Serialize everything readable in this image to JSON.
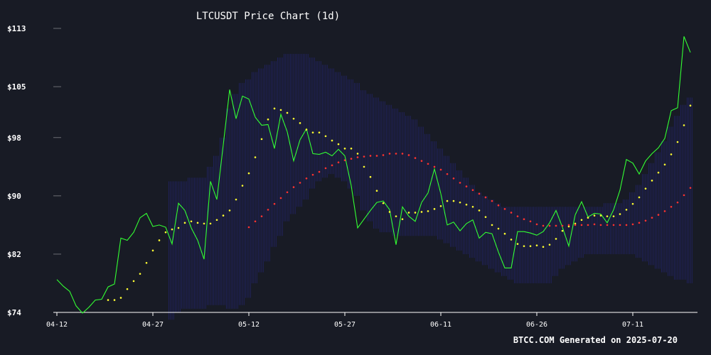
{
  "chart_data": {
    "type": "line",
    "title": "LTCUSDT Price Chart (1d)",
    "xlabel": "",
    "ylabel": "",
    "ylim": [
      74,
      113
    ],
    "y_ticks": [
      {
        "value": 74,
        "label": "$74"
      },
      {
        "value": 82,
        "label": "$82"
      },
      {
        "value": 90,
        "label": "$90"
      },
      {
        "value": 98,
        "label": "$98"
      },
      {
        "value": 105,
        "label": "$105"
      },
      {
        "value": 113,
        "label": "$113"
      }
    ],
    "x_ticks": [
      {
        "index": 0,
        "label": "04-12"
      },
      {
        "index": 15,
        "label": "04-27"
      },
      {
        "index": 30,
        "label": "05-12"
      },
      {
        "index": 45,
        "label": "05-27"
      },
      {
        "index": 60,
        "label": "06-11"
      },
      {
        "index": 75,
        "label": "06-26"
      },
      {
        "index": 90,
        "label": "07-11"
      }
    ],
    "grid": false,
    "series": [
      {
        "color": "#33ff33",
        "style": "line",
        "values": [
          78.5,
          77.6,
          76.9,
          74.9,
          73.9,
          74.7,
          75.7,
          75.8,
          77.5,
          77.9,
          84.2,
          83.9,
          85.0,
          87.0,
          87.6,
          85.8,
          86.0,
          85.7,
          83.4,
          89.0,
          88.0,
          85.6,
          83.9,
          81.3,
          92.0,
          89.5,
          97.0,
          104.6,
          100.6,
          103.7,
          103.3,
          100.8,
          99.7,
          99.8,
          96.5,
          101.2,
          98.8,
          94.8,
          97.7,
          99.2,
          95.8,
          95.7,
          96.0,
          95.5,
          96.4,
          95.5,
          91.4,
          85.6,
          86.8,
          88.0,
          89.1,
          89.3,
          88.1,
          83.3,
          88.5,
          87.2,
          86.5,
          89.1,
          90.4,
          93.7,
          90.3,
          86.0,
          86.4,
          85.2,
          86.2,
          86.7,
          84.2,
          85.0,
          84.8,
          82.3,
          80.1,
          80.1,
          85.1,
          85.1,
          84.9,
          84.6,
          85.1,
          86.3,
          88.0,
          85.7,
          83.1,
          87.4,
          89.2,
          87.1,
          87.6,
          87.5,
          86.3,
          88.1,
          90.8,
          95.0,
          94.5,
          93.0,
          94.8,
          95.8,
          96.6,
          97.9,
          101.7,
          102.1,
          111.9,
          109.7
        ]
      },
      {
        "color": "#ffff33",
        "style": "dots",
        "values": [
          null,
          null,
          null,
          null,
          null,
          null,
          null,
          null,
          75.7,
          75.7,
          76.0,
          77.2,
          78.3,
          79.3,
          80.8,
          82.5,
          83.9,
          85.0,
          85.4,
          85.6,
          86.3,
          86.5,
          86.3,
          86.2,
          86.2,
          86.7,
          87.3,
          88.0,
          89.5,
          91.4,
          93.1,
          95.3,
          97.8,
          100.5,
          102.0,
          101.8,
          101.4,
          100.6,
          100.0,
          99.1,
          98.7,
          98.7,
          98.2,
          97.6,
          97.1,
          96.5,
          96.5,
          95.8,
          94.0,
          92.6,
          90.7,
          89.0,
          87.8,
          87.2,
          86.8,
          87.7,
          87.7,
          87.8,
          87.9,
          88.2,
          88.6,
          89.3,
          89.3,
          89.1,
          88.8,
          88.5,
          88.0,
          87.1,
          86.0,
          85.5,
          84.8,
          84.0,
          83.4,
          83.1,
          83.1,
          83.2,
          83.0,
          83.3,
          84.1,
          85.2,
          85.8,
          86.2,
          86.7,
          87.0,
          87.3,
          87.3,
          87.2,
          87.2,
          87.5,
          88.1,
          88.9,
          89.8,
          91.0,
          92.1,
          93.2,
          94.3,
          95.7,
          97.4,
          99.7,
          102.4
        ]
      },
      {
        "color": "#ff3333",
        "style": "dots",
        "values": [
          null,
          null,
          null,
          null,
          null,
          null,
          null,
          null,
          null,
          null,
          null,
          null,
          null,
          null,
          null,
          null,
          null,
          null,
          null,
          null,
          null,
          null,
          null,
          null,
          null,
          null,
          null,
          null,
          null,
          null,
          85.7,
          86.5,
          87.2,
          88.1,
          88.9,
          89.7,
          90.5,
          91.2,
          91.8,
          92.4,
          92.9,
          93.3,
          93.8,
          94.2,
          94.6,
          94.9,
          95.1,
          95.3,
          95.4,
          95.5,
          95.5,
          95.6,
          95.8,
          95.8,
          95.8,
          95.6,
          95.2,
          94.8,
          94.4,
          94.0,
          93.6,
          93.0,
          92.4,
          91.8,
          91.3,
          90.8,
          90.3,
          89.8,
          89.3,
          88.7,
          88.2,
          87.7,
          87.2,
          86.8,
          86.5,
          86.1,
          85.9,
          85.9,
          85.9,
          85.9,
          86.0,
          86.0,
          86.0,
          86.0,
          86.1,
          86.0,
          86.0,
          86.0,
          86.0,
          86.0,
          86.1,
          86.3,
          86.6,
          87.0,
          87.4,
          87.9,
          88.5,
          89.1,
          90.1,
          91.1
        ]
      }
    ],
    "bands": {
      "color": "#2a2aa0",
      "upper": [
        null,
        null,
        null,
        null,
        null,
        null,
        null,
        null,
        null,
        null,
        null,
        null,
        null,
        null,
        null,
        null,
        null,
        null,
        null,
        null,
        null,
        null,
        null,
        null,
        null,
        null,
        null,
        null,
        null,
        null,
        null,
        null,
        null,
        null,
        null,
        null,
        null,
        null,
        null,
        null,
        null,
        null,
        null,
        null,
        null,
        null,
        null,
        null,
        null,
        null,
        null,
        null,
        null,
        null,
        null,
        null,
        null,
        null,
        null,
        null,
        null,
        null,
        null,
        null,
        null,
        null,
        null,
        null,
        null,
        null,
        null,
        null,
        null,
        null,
        null,
        null,
        null,
        null,
        null,
        null,
        null,
        null,
        null,
        null,
        null,
        null,
        null,
        null,
        null,
        null,
        null,
        null,
        null,
        null,
        null,
        null,
        null,
        null,
        null,
        null
      ],
      "pairs": [
        [
          18,
          92.0,
          73.0
        ],
        [
          19,
          92.0,
          74.0
        ],
        [
          20,
          92.0,
          74.5
        ],
        [
          21,
          92.5,
          74.5
        ],
        [
          22,
          92.5,
          74.5
        ],
        [
          23,
          92.5,
          74.5
        ],
        [
          24,
          94.0,
          75.0
        ],
        [
          25,
          95.5,
          75.0
        ],
        [
          26,
          98.0,
          75.0
        ],
        [
          27,
          102.0,
          74.5
        ],
        [
          28,
          104.0,
          74.5
        ],
        [
          29,
          105.5,
          75.0
        ],
        [
          30,
          106.0,
          76.0
        ],
        [
          31,
          107.0,
          78.0
        ],
        [
          32,
          107.5,
          79.5
        ],
        [
          33,
          108.0,
          81.0
        ],
        [
          34,
          108.5,
          83.0
        ],
        [
          35,
          109.0,
          84.5
        ],
        [
          36,
          109.5,
          86.5
        ],
        [
          37,
          109.5,
          87.5
        ],
        [
          38,
          109.5,
          88.5
        ],
        [
          39,
          109.5,
          89.5
        ],
        [
          40,
          109.0,
          91.0
        ],
        [
          41,
          108.5,
          92.0
        ],
        [
          42,
          108.0,
          92.5
        ],
        [
          43,
          107.5,
          93.0
        ],
        [
          44,
          107.0,
          92.5
        ],
        [
          45,
          106.5,
          92.0
        ],
        [
          46,
          106.0,
          91.0
        ],
        [
          47,
          105.5,
          90.0
        ],
        [
          48,
          104.5,
          88.0
        ],
        [
          49,
          104.0,
          86.5
        ],
        [
          50,
          103.5,
          85.5
        ],
        [
          51,
          103.0,
          85.0
        ],
        [
          52,
          102.5,
          85.0
        ],
        [
          53,
          102.0,
          84.5
        ],
        [
          54,
          101.5,
          84.5
        ],
        [
          55,
          101.0,
          84.5
        ],
        [
          56,
          100.5,
          84.5
        ],
        [
          57,
          99.5,
          84.5
        ],
        [
          58,
          98.5,
          84.5
        ],
        [
          59,
          97.5,
          84.5
        ],
        [
          60,
          96.5,
          84.0
        ],
        [
          61,
          95.5,
          83.5
        ],
        [
          62,
          94.5,
          83.0
        ],
        [
          63,
          93.5,
          82.5
        ],
        [
          64,
          92.5,
          82.0
        ],
        [
          65,
          91.5,
          81.5
        ],
        [
          66,
          90.5,
          81.0
        ],
        [
          67,
          90.0,
          80.5
        ],
        [
          68,
          89.5,
          80.0
        ],
        [
          69,
          89.0,
          79.5
        ],
        [
          70,
          88.5,
          79.0
        ],
        [
          71,
          88.5,
          78.5
        ],
        [
          72,
          88.5,
          78.0
        ],
        [
          73,
          88.5,
          78.0
        ],
        [
          74,
          88.5,
          78.0
        ],
        [
          75,
          88.5,
          78.0
        ],
        [
          76,
          88.5,
          78.0
        ],
        [
          77,
          88.5,
          78.0
        ],
        [
          78,
          88.5,
          79.0
        ],
        [
          79,
          88.5,
          80.0
        ],
        [
          80,
          88.5,
          80.5
        ],
        [
          81,
          88.5,
          81.0
        ],
        [
          82,
          88.5,
          81.5
        ],
        [
          83,
          88.5,
          82.0
        ],
        [
          84,
          88.5,
          82.0
        ],
        [
          85,
          88.5,
          82.0
        ],
        [
          86,
          89.0,
          82.0
        ],
        [
          87,
          89.0,
          82.0
        ],
        [
          88,
          89.0,
          82.0
        ],
        [
          89,
          89.5,
          82.0
        ],
        [
          90,
          90.5,
          82.0
        ],
        [
          91,
          91.5,
          81.5
        ],
        [
          92,
          93.0,
          81.0
        ],
        [
          93,
          94.5,
          80.5
        ],
        [
          94,
          96.0,
          80.0
        ],
        [
          95,
          97.5,
          79.5
        ],
        [
          96,
          99.5,
          79.0
        ],
        [
          97,
          101.0,
          78.5
        ],
        [
          98,
          102.5,
          78.5
        ],
        [
          99,
          103.5,
          78.0
        ]
      ]
    }
  },
  "footer": {
    "watermark": "BTCC.COM Generated on 2025-07-20"
  }
}
